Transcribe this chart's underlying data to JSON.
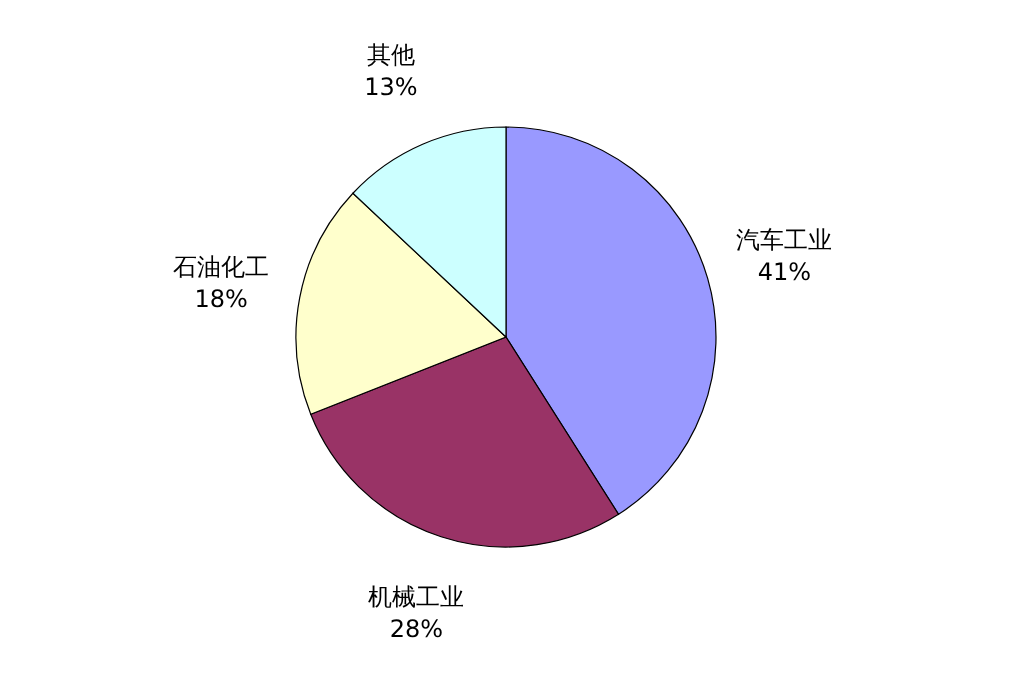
{
  "chart_data": {
    "type": "pie",
    "categories": [
      "汽车工业",
      "机械工业",
      "石油化工",
      "其他"
    ],
    "values": [
      41,
      28,
      18,
      13
    ],
    "colors": [
      "#9999ff",
      "#993366",
      "#ffffcc",
      "#ccffff"
    ],
    "value_labels": [
      "41%",
      "28%",
      "18%",
      "13%"
    ]
  }
}
